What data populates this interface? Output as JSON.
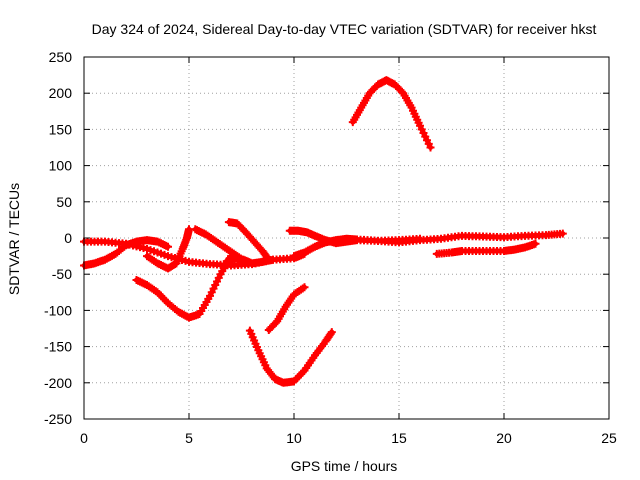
{
  "chart_data": {
    "type": "scatter",
    "title": "Day 324 of 2024, Sidereal Day-to-day VTEC variation (SDTVAR) for receiver hkst",
    "xlabel": "GPS time / hours",
    "ylabel": "SDTVAR / TECUs",
    "xlim": [
      0,
      25
    ],
    "ylim": [
      -250,
      250
    ],
    "xticks": [
      0,
      5,
      10,
      15,
      20,
      25
    ],
    "yticks": [
      -250,
      -200,
      -150,
      -100,
      -50,
      0,
      50,
      100,
      150,
      200,
      250
    ],
    "grid": true,
    "marker": "plus",
    "color": "#ff0000",
    "series": [
      {
        "name": "arc-1",
        "x": [
          0.0,
          1.0,
          2.0,
          3.0,
          4.0,
          5.0,
          6.0,
          7.0,
          8.0,
          9.0,
          10.0,
          10.5
        ],
        "y": [
          -5,
          -5,
          -8,
          -15,
          -25,
          -33,
          -36,
          -38,
          -36,
          -30,
          -28,
          -22
        ]
      },
      {
        "name": "arc-2",
        "x": [
          0.0,
          0.5,
          1.0,
          1.5,
          2.0,
          2.5,
          3.0,
          3.5,
          4.0
        ],
        "y": [
          -38,
          -35,
          -30,
          -22,
          -10,
          -5,
          -3,
          -5,
          -12
        ]
      },
      {
        "name": "arc-3",
        "x": [
          2.5,
          3.0,
          3.5,
          4.0,
          4.5,
          5.0,
          5.5,
          6.0,
          6.5,
          7.0
        ],
        "y": [
          -58,
          -65,
          -75,
          -90,
          -102,
          -110,
          -105,
          -80,
          -50,
          -25
        ]
      },
      {
        "name": "arc-4",
        "x": [
          3.0,
          3.5,
          4.0,
          4.4,
          4.7,
          4.9,
          5.0
        ],
        "y": [
          -25,
          -35,
          -42,
          -35,
          -15,
          0,
          12
        ]
      },
      {
        "name": "arc-5",
        "x": [
          5.3,
          5.8,
          6.3,
          6.8,
          7.3,
          7.8
        ],
        "y": [
          12,
          5,
          -5,
          -15,
          -25,
          -35
        ]
      },
      {
        "name": "arc-6",
        "x": [
          6.8,
          7.2,
          7.6,
          8.0,
          8.5,
          9.0
        ],
        "y": [
          -32,
          -28,
          -30,
          -35,
          -33,
          -30
        ]
      },
      {
        "name": "arc-7",
        "x": [
          6.9,
          7.3,
          7.7,
          8.1,
          8.5,
          8.8
        ],
        "y": [
          22,
          20,
          8,
          -5,
          -18,
          -30
        ]
      },
      {
        "name": "arc-8",
        "x": [
          7.9,
          8.3,
          8.7,
          9.1,
          9.5,
          10.0,
          10.5,
          11.0,
          11.5,
          11.8
        ],
        "y": [
          -128,
          -155,
          -180,
          -195,
          -200,
          -198,
          -183,
          -162,
          -143,
          -130
        ]
      },
      {
        "name": "arc-9",
        "x": [
          8.8,
          9.2,
          9.6,
          10.0,
          10.5
        ],
        "y": [
          -127,
          -115,
          -95,
          -78,
          -68
        ]
      },
      {
        "name": "arc-10",
        "x": [
          9.8,
          10.2,
          10.6,
          11.0,
          11.5,
          12.0,
          12.5,
          13.0,
          14.0,
          15.0,
          16.0,
          17.0,
          18.0,
          19.0,
          20.0,
          21.0,
          22.0,
          22.8
        ],
        "y": [
          10,
          10,
          8,
          3,
          -3,
          -7,
          -5,
          -3,
          -4,
          -6,
          -3,
          -1,
          3,
          2,
          1,
          3,
          4,
          6
        ]
      },
      {
        "name": "arc-11",
        "x": [
          10.0,
          10.5,
          11.0,
          11.5,
          12.0,
          12.5,
          13.0,
          14.0,
          15.0,
          16.0
        ],
        "y": [
          -25,
          -20,
          -12,
          -6,
          -3,
          -1,
          -2,
          -4,
          -3,
          -1
        ]
      },
      {
        "name": "arc-12",
        "x": [
          12.8,
          13.2,
          13.6,
          14.0,
          14.4,
          14.8,
          15.2,
          15.6,
          16.0,
          16.5
        ],
        "y": [
          160,
          180,
          200,
          212,
          218,
          212,
          200,
          180,
          155,
          125
        ]
      },
      {
        "name": "arc-13",
        "x": [
          16.8,
          17.5,
          18.0,
          19.0,
          20.0,
          20.5,
          21.0,
          21.5
        ],
        "y": [
          -22,
          -20,
          -18,
          -18,
          -18,
          -16,
          -13,
          -8
        ]
      }
    ]
  }
}
